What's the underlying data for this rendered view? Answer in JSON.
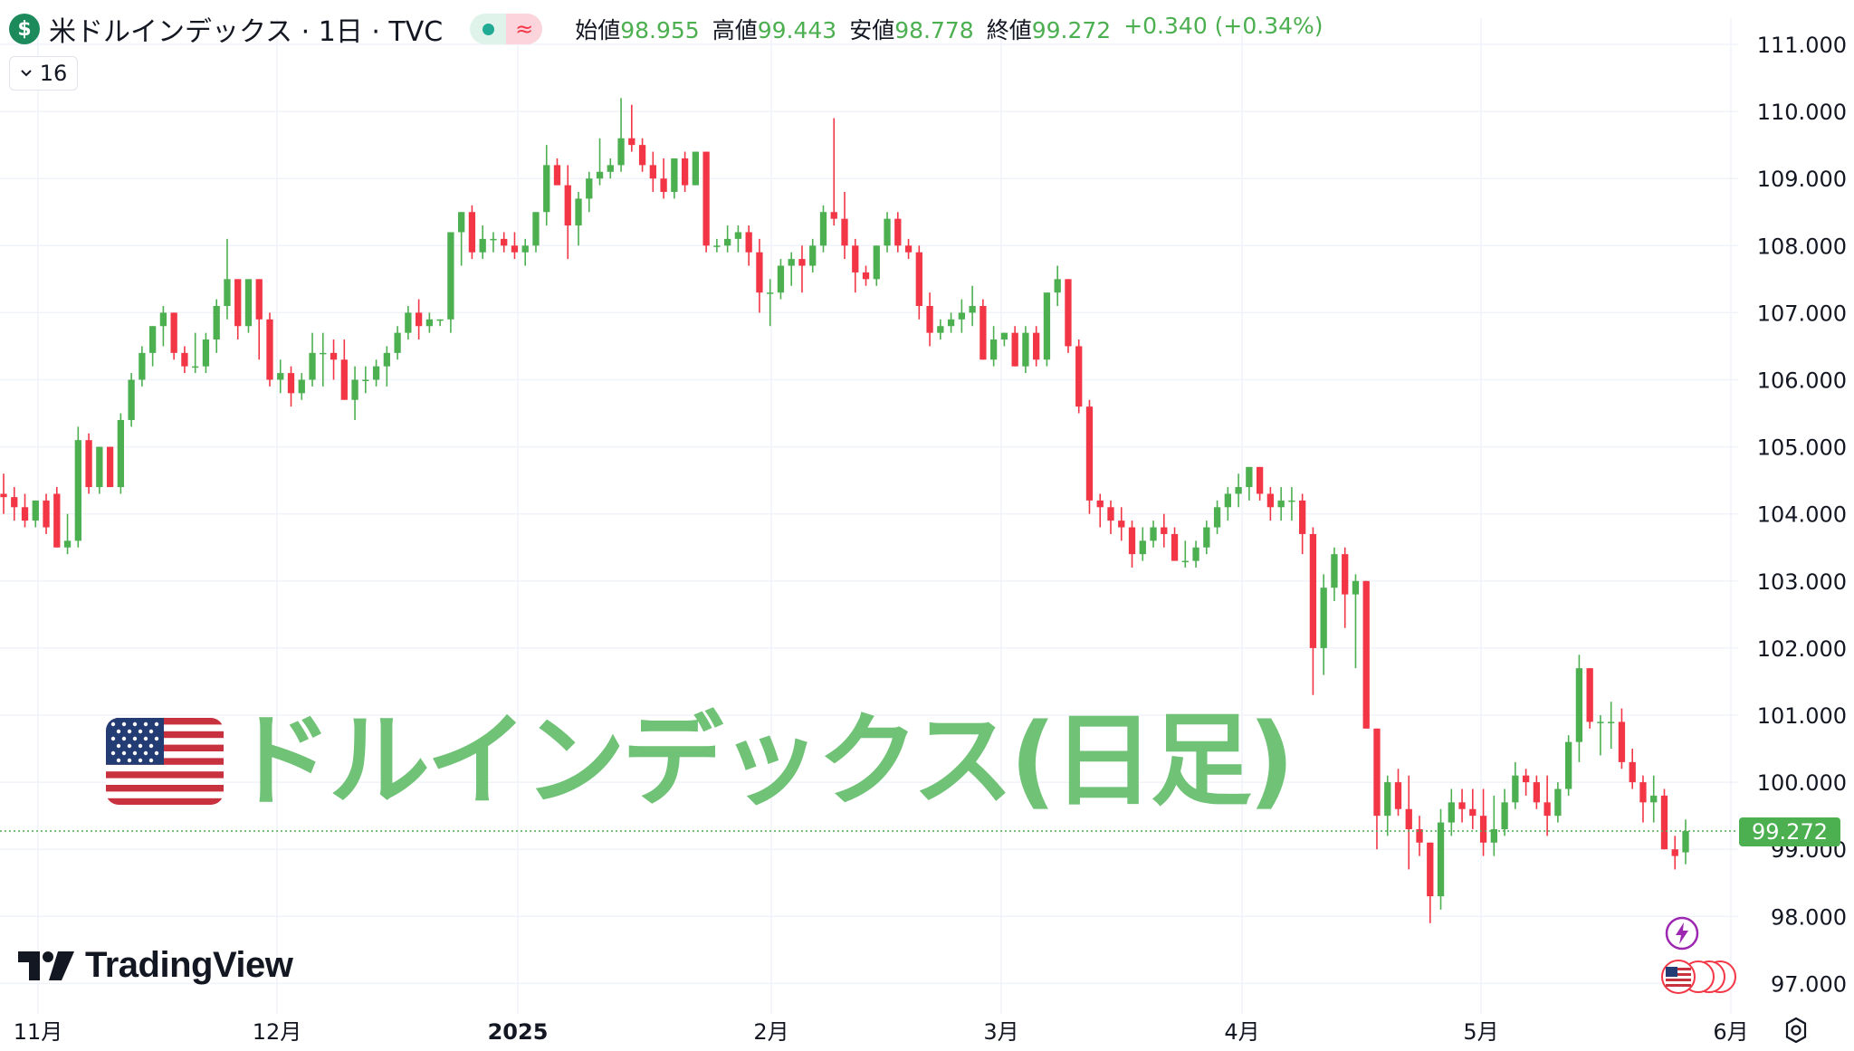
{
  "header": {
    "symbol_icon": "dollar-icon",
    "title": "米ドルインデックス · 1日 · TVC",
    "ohlc": {
      "open_label": "始値",
      "open": "98.955",
      "high_label": "高値",
      "high": "99.443",
      "low_label": "安値",
      "low": "98.778",
      "close_label": "終値",
      "close": "99.272",
      "change": "+0.340 (+0.34%)"
    }
  },
  "indicator_button": {
    "label": "16"
  },
  "banner": {
    "flag": "us-flag-icon",
    "text": "ドルインデックス(日足)"
  },
  "logo": {
    "text": "TradingView"
  },
  "price_tag": "99.272",
  "colors": {
    "up": "#4caf50",
    "down": "#f23645",
    "grid": "#f0f3fa",
    "axis_text": "#131722"
  },
  "chart_data": {
    "type": "candlestick",
    "y_axis": {
      "min": 97.0,
      "max": 111.0,
      "ticks": [
        "111.000",
        "110.000",
        "109.000",
        "108.000",
        "107.000",
        "106.000",
        "105.000",
        "104.000",
        "103.000",
        "102.000",
        "101.000",
        "100.000",
        "99.000",
        "98.000",
        "97.000"
      ]
    },
    "x_axis": {
      "labels": [
        "11月",
        "12月",
        "2025",
        "2月",
        "3月",
        "4月",
        "5月",
        "6月"
      ]
    },
    "grid": true,
    "last_price": 99.272,
    "candles_ohlc": [
      [
        104.3,
        104.6,
        104.0,
        104.25
      ],
      [
        104.25,
        104.4,
        103.9,
        104.1
      ],
      [
        104.1,
        104.3,
        103.8,
        103.9
      ],
      [
        103.9,
        104.2,
        103.8,
        104.2
      ],
      [
        104.2,
        104.3,
        103.7,
        103.8
      ],
      [
        104.3,
        104.4,
        103.5,
        103.5
      ],
      [
        103.5,
        104.0,
        103.4,
        103.6
      ],
      [
        103.6,
        105.3,
        103.5,
        105.1
      ],
      [
        105.1,
        105.2,
        104.3,
        104.4
      ],
      [
        104.4,
        105.0,
        104.3,
        105.0
      ],
      [
        105.0,
        105.0,
        104.4,
        104.4
      ],
      [
        104.4,
        105.5,
        104.3,
        105.4
      ],
      [
        105.4,
        106.1,
        105.3,
        106.0
      ],
      [
        106.0,
        106.5,
        105.9,
        106.4
      ],
      [
        106.4,
        106.8,
        106.2,
        106.8
      ],
      [
        106.8,
        107.1,
        106.5,
        107.0
      ],
      [
        107.0,
        107.0,
        106.3,
        106.4
      ],
      [
        106.4,
        106.5,
        106.1,
        106.2
      ],
      [
        106.2,
        106.7,
        106.1,
        106.2
      ],
      [
        106.2,
        106.7,
        106.1,
        106.6
      ],
      [
        106.6,
        107.2,
        106.4,
        107.1
      ],
      [
        107.1,
        108.1,
        106.9,
        107.5
      ],
      [
        107.5,
        107.5,
        106.6,
        106.8
      ],
      [
        106.8,
        107.5,
        106.7,
        107.5
      ],
      [
        107.5,
        107.5,
        106.3,
        106.9
      ],
      [
        106.9,
        107.0,
        105.9,
        106.0
      ],
      [
        106.0,
        106.3,
        105.8,
        106.1
      ],
      [
        106.1,
        106.2,
        105.6,
        105.8
      ],
      [
        105.8,
        106.1,
        105.7,
        106.0
      ],
      [
        106.0,
        106.7,
        105.9,
        106.4
      ],
      [
        106.4,
        106.7,
        105.9,
        106.4
      ],
      [
        106.4,
        106.6,
        106.0,
        106.3
      ],
      [
        106.3,
        106.6,
        105.7,
        105.7
      ],
      [
        105.7,
        106.2,
        105.4,
        106.0
      ],
      [
        106.0,
        106.2,
        105.8,
        106.0
      ],
      [
        106.0,
        106.3,
        105.9,
        106.2
      ],
      [
        106.2,
        106.5,
        105.9,
        106.4
      ],
      [
        106.4,
        106.8,
        106.3,
        106.7
      ],
      [
        106.7,
        107.1,
        106.6,
        107.0
      ],
      [
        107.0,
        107.2,
        106.6,
        106.8
      ],
      [
        106.8,
        107.0,
        106.7,
        106.9
      ],
      [
        106.9,
        106.9,
        106.8,
        106.9
      ],
      [
        106.9,
        108.2,
        106.7,
        108.2
      ],
      [
        108.2,
        108.5,
        107.7,
        108.5
      ],
      [
        108.5,
        108.6,
        107.8,
        107.9
      ],
      [
        107.9,
        108.3,
        107.8,
        108.1
      ],
      [
        108.1,
        108.2,
        107.9,
        108.1
      ],
      [
        108.1,
        108.2,
        107.9,
        108.0
      ],
      [
        108.0,
        108.2,
        107.8,
        107.9
      ],
      [
        107.9,
        108.1,
        107.7,
        108.0
      ],
      [
        108.0,
        108.5,
        107.9,
        108.5
      ],
      [
        108.5,
        109.5,
        108.3,
        109.2
      ],
      [
        109.2,
        109.3,
        108.9,
        108.9
      ],
      [
        108.9,
        109.2,
        107.8,
        108.3
      ],
      [
        108.3,
        108.8,
        108.0,
        108.7
      ],
      [
        108.7,
        109.1,
        108.5,
        109.0
      ],
      [
        109.0,
        109.6,
        108.9,
        109.1
      ],
      [
        109.1,
        109.3,
        109.0,
        109.2
      ],
      [
        109.2,
        110.2,
        109.1,
        109.6
      ],
      [
        109.6,
        110.1,
        109.4,
        109.5
      ],
      [
        109.5,
        109.6,
        109.1,
        109.2
      ],
      [
        109.2,
        109.4,
        108.8,
        109.0
      ],
      [
        109.0,
        109.3,
        108.7,
        108.8
      ],
      [
        108.8,
        109.3,
        108.7,
        109.3
      ],
      [
        109.3,
        109.4,
        108.8,
        108.9
      ],
      [
        108.9,
        109.4,
        108.9,
        109.4
      ],
      [
        109.4,
        109.4,
        107.9,
        108.0
      ],
      [
        108.0,
        108.1,
        107.9,
        108.0
      ],
      [
        108.0,
        108.3,
        107.9,
        108.1
      ],
      [
        108.1,
        108.3,
        107.9,
        108.2
      ],
      [
        108.2,
        108.3,
        107.7,
        107.9
      ],
      [
        107.9,
        108.1,
        107.0,
        107.3
      ],
      [
        107.3,
        107.5,
        106.8,
        107.3
      ],
      [
        107.3,
        107.8,
        107.2,
        107.7
      ],
      [
        107.7,
        107.9,
        107.4,
        107.8
      ],
      [
        107.8,
        108.0,
        107.3,
        107.7
      ],
      [
        107.7,
        108.1,
        107.6,
        108.0
      ],
      [
        108.0,
        108.6,
        107.9,
        108.5
      ],
      [
        108.5,
        109.9,
        108.3,
        108.4
      ],
      [
        108.4,
        108.8,
        107.8,
        108.0
      ],
      [
        108.0,
        108.1,
        107.3,
        107.6
      ],
      [
        107.6,
        107.7,
        107.4,
        107.5
      ],
      [
        107.5,
        108.0,
        107.4,
        108.0
      ],
      [
        108.0,
        108.5,
        107.9,
        108.4
      ],
      [
        108.4,
        108.5,
        107.9,
        108.0
      ],
      [
        108.0,
        108.1,
        107.8,
        107.9
      ],
      [
        107.9,
        108.0,
        106.9,
        107.1
      ],
      [
        107.1,
        107.3,
        106.5,
        106.7
      ],
      [
        106.7,
        106.9,
        106.6,
        106.8
      ],
      [
        106.8,
        107.0,
        106.7,
        106.9
      ],
      [
        106.9,
        107.2,
        106.7,
        107.0
      ],
      [
        107.0,
        107.4,
        106.8,
        107.1
      ],
      [
        107.1,
        107.2,
        106.3,
        106.3
      ],
      [
        106.3,
        106.8,
        106.2,
        106.6
      ],
      [
        106.6,
        106.7,
        106.5,
        106.7
      ],
      [
        106.7,
        106.8,
        106.2,
        106.2
      ],
      [
        106.2,
        106.8,
        106.1,
        106.7
      ],
      [
        106.7,
        106.8,
        106.2,
        106.3
      ],
      [
        106.3,
        107.3,
        106.2,
        107.3
      ],
      [
        107.3,
        107.7,
        107.1,
        107.5
      ],
      [
        107.5,
        107.5,
        106.4,
        106.5
      ],
      [
        106.5,
        106.6,
        105.5,
        105.6
      ],
      [
        105.6,
        105.7,
        104.0,
        104.2
      ],
      [
        104.2,
        104.3,
        103.8,
        104.1
      ],
      [
        104.1,
        104.2,
        103.7,
        103.9
      ],
      [
        103.9,
        104.1,
        103.6,
        103.8
      ],
      [
        103.8,
        103.9,
        103.2,
        103.4
      ],
      [
        103.4,
        103.8,
        103.3,
        103.6
      ],
      [
        103.6,
        103.9,
        103.5,
        103.8
      ],
      [
        103.8,
        104.0,
        103.5,
        103.7
      ],
      [
        103.7,
        103.8,
        103.3,
        103.3
      ],
      [
        103.3,
        103.6,
        103.2,
        103.3
      ],
      [
        103.3,
        103.6,
        103.2,
        103.5
      ],
      [
        103.5,
        103.9,
        103.4,
        103.8
      ],
      [
        103.8,
        104.2,
        103.7,
        104.1
      ],
      [
        104.1,
        104.4,
        103.9,
        104.3
      ],
      [
        104.3,
        104.6,
        104.1,
        104.4
      ],
      [
        104.4,
        104.7,
        104.2,
        104.7
      ],
      [
        104.7,
        104.7,
        104.2,
        104.3
      ],
      [
        104.3,
        104.4,
        103.9,
        104.1
      ],
      [
        104.1,
        104.4,
        103.9,
        104.2
      ],
      [
        104.2,
        104.4,
        103.9,
        104.2
      ],
      [
        104.2,
        104.3,
        103.4,
        103.7
      ],
      [
        103.7,
        103.8,
        101.3,
        102.0
      ],
      [
        102.0,
        103.1,
        101.6,
        102.9
      ],
      [
        102.9,
        103.5,
        102.7,
        103.4
      ],
      [
        103.4,
        103.5,
        102.3,
        102.8
      ],
      [
        102.8,
        103.1,
        101.7,
        103.0
      ],
      [
        103.0,
        103.0,
        100.8,
        100.8
      ],
      [
        100.8,
        100.8,
        99.0,
        99.5
      ],
      [
        99.5,
        100.1,
        99.2,
        100.0
      ],
      [
        100.0,
        100.2,
        99.5,
        99.6
      ],
      [
        99.6,
        100.1,
        98.7,
        99.3
      ],
      [
        99.3,
        99.5,
        98.9,
        99.1
      ],
      [
        99.1,
        99.1,
        97.9,
        98.3
      ],
      [
        98.3,
        99.6,
        98.1,
        99.4
      ],
      [
        99.4,
        99.9,
        99.2,
        99.7
      ],
      [
        99.7,
        99.9,
        99.4,
        99.6
      ],
      [
        99.6,
        99.9,
        99.3,
        99.5
      ],
      [
        99.5,
        99.9,
        98.9,
        99.1
      ],
      [
        99.1,
        99.8,
        98.9,
        99.3
      ],
      [
        99.3,
        99.9,
        99.2,
        99.7
      ],
      [
        99.7,
        100.3,
        99.6,
        100.1
      ],
      [
        100.1,
        100.2,
        99.8,
        100.0
      ],
      [
        100.0,
        100.1,
        99.6,
        99.7
      ],
      [
        99.7,
        100.1,
        99.2,
        99.5
      ],
      [
        99.5,
        100.0,
        99.4,
        99.9
      ],
      [
        99.9,
        100.7,
        99.8,
        100.6
      ],
      [
        100.6,
        101.9,
        100.3,
        101.7
      ],
      [
        101.7,
        101.7,
        100.8,
        100.9
      ],
      [
        100.9,
        101.0,
        100.4,
        100.9
      ],
      [
        100.9,
        101.2,
        100.5,
        100.9
      ],
      [
        100.9,
        101.1,
        100.2,
        100.3
      ],
      [
        100.3,
        100.5,
        99.9,
        100.0
      ],
      [
        100.0,
        100.1,
        99.4,
        99.7
      ],
      [
        99.7,
        100.1,
        99.4,
        99.8
      ],
      [
        99.8,
        99.9,
        99.0,
        99.0
      ],
      [
        99.0,
        99.2,
        98.7,
        98.9
      ],
      [
        98.955,
        99.443,
        98.778,
        99.272
      ]
    ]
  }
}
